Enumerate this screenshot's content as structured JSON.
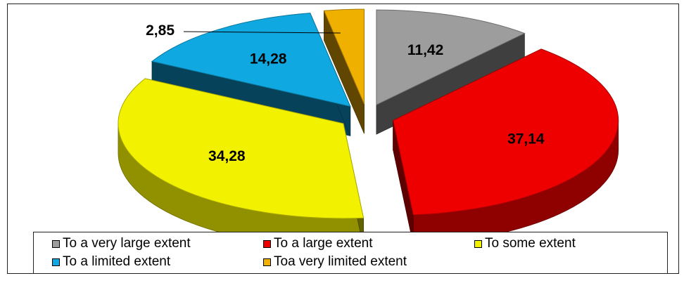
{
  "chart_data": {
    "type": "pie",
    "style": "3d-exploded",
    "series": [
      {
        "label": "To a very large extent",
        "value": 11.42,
        "display": "11,42",
        "color": "#9d9d9d"
      },
      {
        "label": "To a large extent",
        "value": 37.14,
        "display": "37,14",
        "color": "#ee0000"
      },
      {
        "label": "To some extent",
        "value": 34.28,
        "display": "34,28",
        "color": "#f2f200"
      },
      {
        "label": "To a limited extent",
        "value": 14.28,
        "display": "14,28",
        "color": "#10a8e0"
      },
      {
        "label": "Toa very limited extent",
        "value": 2.85,
        "display": "2,85",
        "color": "#f0b000"
      }
    ],
    "legend": {
      "position": "bottom"
    }
  }
}
